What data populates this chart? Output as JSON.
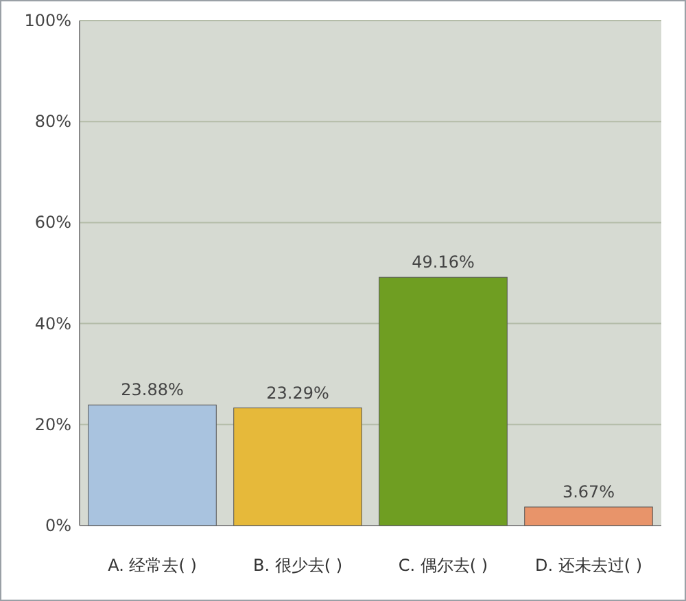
{
  "chart_data": {
    "type": "bar",
    "categories": [
      "A. 经常去( )",
      "B. 很少去( )",
      "C. 偶尔去( )",
      "D. 还未去过( )"
    ],
    "values": [
      23.88,
      23.29,
      49.16,
      3.67
    ],
    "value_labels": [
      "23.88%",
      "23.29%",
      "49.16%",
      "3.67%"
    ],
    "colors": [
      "#a9c3df",
      "#e6b93a",
      "#6f9e22",
      "#e8946a"
    ],
    "ylim": [
      0,
      100
    ],
    "yticks": [
      {
        "value": 0,
        "label": "0%"
      },
      {
        "value": 20,
        "label": "20%"
      },
      {
        "value": 40,
        "label": "40%"
      },
      {
        "value": 60,
        "label": "60%"
      },
      {
        "value": 80,
        "label": "80%"
      },
      {
        "value": 100,
        "label": "100%"
      }
    ],
    "grid": "y"
  }
}
